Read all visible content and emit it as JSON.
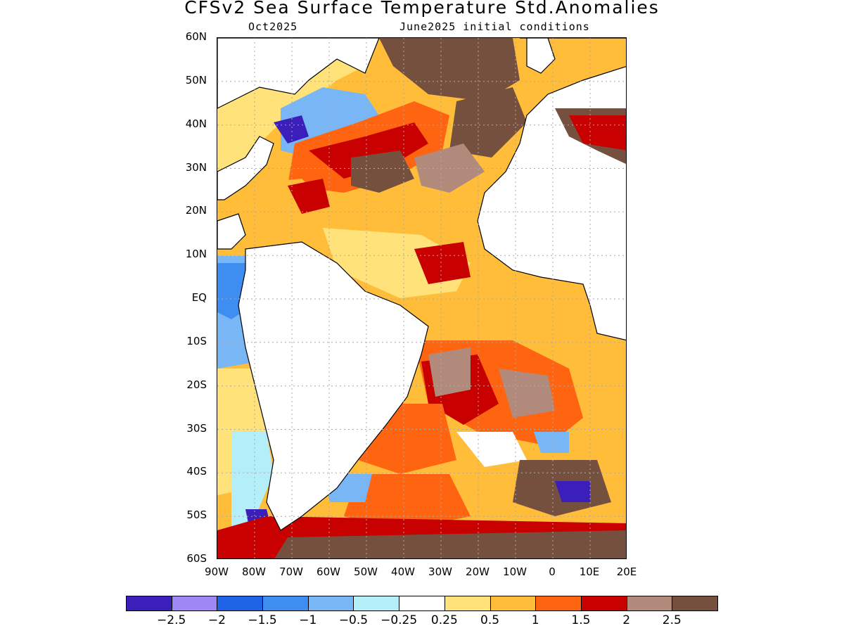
{
  "title": "CFSv2 Sea Surface Temperature Std.Anomalies",
  "subtitle_left": "Oct2025",
  "subtitle_right": "June2025 initial conditions",
  "lat_labels": [
    "60N",
    "50N",
    "40N",
    "30N",
    "20N",
    "10N",
    "EQ",
    "10S",
    "20S",
    "30S",
    "40S",
    "50S",
    "60S"
  ],
  "lon_labels": [
    "90W",
    "80W",
    "70W",
    "60W",
    "50W",
    "40W",
    "30W",
    "20W",
    "10W",
    "0",
    "10E",
    "20E"
  ],
  "colorbar": {
    "colors": [
      "#3b1fba",
      "#9f87f5",
      "#1e62e6",
      "#3d8ef0",
      "#78b6f6",
      "#b4eef9",
      "#ffffff",
      "#ffe27a",
      "#ffbd3a",
      "#ff6410",
      "#c80000",
      "#b28a7c",
      "#76503f"
    ],
    "labels": [
      "−2.5",
      "−2",
      "−1.5",
      "−1",
      "−0.5",
      "−0.25",
      "0.25",
      "0.5",
      "1",
      "1.5",
      "2",
      "2.5"
    ]
  }
}
